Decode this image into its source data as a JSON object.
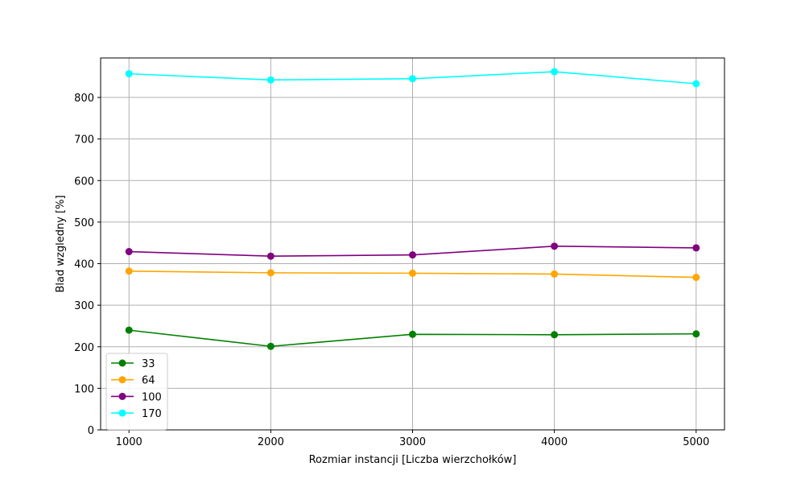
{
  "chart_data": {
    "type": "line",
    "title": "",
    "xlabel": "Rozmiar instancji [Liczba wierzchołków]",
    "ylabel": "Blad wzgledny [%]",
    "x": [
      1000,
      2000,
      3000,
      4000,
      5000
    ],
    "x_tick_labels": [
      "1000",
      "2000",
      "3000",
      "4000",
      "5000"
    ],
    "y_ticks": [
      0,
      100,
      200,
      300,
      400,
      500,
      600,
      700,
      800
    ],
    "y_tick_labels": [
      "0",
      "100",
      "200",
      "300",
      "400",
      "500",
      "600",
      "700",
      "800"
    ],
    "xlim": [
      800,
      5200
    ],
    "ylim": [
      0,
      895
    ],
    "grid": true,
    "legend_position": "lower-left",
    "series": [
      {
        "name": "33",
        "color": "#008000",
        "values": [
          240,
          201,
          230,
          229,
          231
        ]
      },
      {
        "name": "64",
        "color": "#ffa500",
        "values": [
          382,
          378,
          377,
          375,
          367
        ]
      },
      {
        "name": "100",
        "color": "#800080",
        "values": [
          429,
          418,
          421,
          442,
          438
        ]
      },
      {
        "name": "170",
        "color": "#00ffff",
        "values": [
          857,
          842,
          845,
          862,
          833
        ]
      }
    ]
  }
}
